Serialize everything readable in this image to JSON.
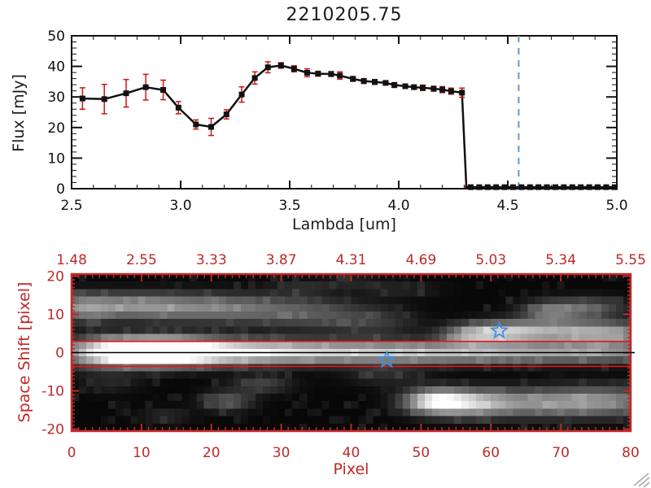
{
  "colors": {
    "black": "#111111",
    "axis_red": "#c02828",
    "error_red": "#cc1515",
    "line_red": "#e41818",
    "lambda_blue": "#5b9bd5",
    "star_blue": "#3f8fe8",
    "grip_gray": "#aaaaaa"
  },
  "chart_data": [
    {
      "type": "line",
      "title": "2210205.75",
      "xlabel": "Lambda [um]",
      "ylabel": "Flux [mJy]",
      "xlim": [
        2.5,
        5.0
      ],
      "ylim": [
        0,
        50
      ],
      "x_ticks": [
        2.5,
        3.0,
        3.5,
        4.0,
        4.5,
        5.0
      ],
      "x_tick_labels": [
        "2.5",
        "3.0",
        "3.5",
        "4.0",
        "4.5",
        "5.0"
      ],
      "x_minor_step": 0.1,
      "y_ticks": [
        0,
        10,
        20,
        30,
        40,
        50
      ],
      "y_tick_labels": [
        "0",
        "10",
        "20",
        "30",
        "40",
        "50"
      ],
      "y_minor_step": 2,
      "marker": "square",
      "series": [
        {
          "name": "spectrum",
          "x": [
            2.55,
            2.65,
            2.75,
            2.84,
            2.92,
            2.99,
            3.07,
            3.14,
            3.21,
            3.28,
            3.34,
            3.4,
            3.46,
            3.52,
            3.58,
            3.63,
            3.69,
            3.73,
            3.79,
            3.84,
            3.89,
            3.94,
            3.98,
            4.03,
            4.07,
            4.11,
            4.16,
            4.2,
            4.24,
            4.29
          ],
          "y": [
            29.5,
            29.3,
            31.2,
            33.2,
            32.3,
            26.5,
            21.0,
            20.2,
            24.3,
            30.8,
            36.2,
            39.7,
            40.3,
            39.2,
            37.9,
            37.6,
            37.5,
            37.0,
            35.9,
            35.2,
            34.9,
            34.6,
            33.9,
            33.5,
            33.2,
            33.0,
            32.7,
            32.4,
            31.9,
            31.4
          ],
          "yerr": [
            3.5,
            4.8,
            4.5,
            4.2,
            3.2,
            2.0,
            1.5,
            2.8,
            1.5,
            2.5,
            2.0,
            1.8,
            0.9,
            1.0,
            1.3,
            0.8,
            0.8,
            1.2,
            0.8,
            0.8,
            0.8,
            0.7,
            0.8,
            0.7,
            0.7,
            0.9,
            0.8,
            1.0,
            1.0,
            1.5
          ]
        }
      ],
      "zero_tail": {
        "x_start": 4.33,
        "x_end": 4.99,
        "n": 18,
        "y": 0.5,
        "drop_x": 4.31
      },
      "vline": {
        "x": 4.55,
        "style": "dashed"
      },
      "hline": {
        "y": 0.6,
        "x_start": 4.3,
        "x_end": 5.0,
        "style": "dashed"
      }
    },
    {
      "type": "heatmap",
      "xlabel": "Pixel",
      "ylabel": "Space Shift [pixel]",
      "xlim": [
        0,
        80
      ],
      "ylim": [
        -20.5,
        20.5
      ],
      "x_ticks": [
        0,
        10,
        20,
        30,
        40,
        50,
        60,
        70,
        80
      ],
      "x_tick_labels": [
        "0",
        "10",
        "20",
        "30",
        "40",
        "50",
        "60",
        "70",
        "80"
      ],
      "y_ticks": [
        -20,
        -10,
        0,
        10,
        20
      ],
      "y_tick_labels": [
        "-20",
        "-10",
        "0",
        "10",
        "20"
      ],
      "top_axis_labels": [
        "1.48",
        "2.55",
        "3.33",
        "3.87",
        "4.31",
        "4.69",
        "5.03",
        "5.34",
        "5.55"
      ],
      "extraction_lines": {
        "upper": 2.9,
        "lower": -3.6
      },
      "center_line_y": 0.0,
      "stars": [
        {
          "x": 45.1,
          "y": -1.9
        },
        {
          "x": 61.2,
          "y": 5.7
        }
      ],
      "grid": {
        "cols": 76,
        "rows": 21
      },
      "blobs": [
        {
          "x": 3,
          "y": 0,
          "sx": 4,
          "sy": 2.6,
          "a": 0.55
        },
        {
          "x": 9,
          "y": 0.3,
          "sx": 4.5,
          "sy": 2.4,
          "a": 1.0
        },
        {
          "x": 15,
          "y": 0.3,
          "sx": 5,
          "sy": 2.4,
          "a": 0.95
        },
        {
          "x": 24,
          "y": 0.2,
          "sx": 7,
          "sy": 2.2,
          "a": 0.62
        },
        {
          "x": 36,
          "y": 0.2,
          "sx": 9,
          "sy": 2.0,
          "a": 0.5
        },
        {
          "x": 50,
          "y": 0,
          "sx": 10,
          "sy": 1.9,
          "a": 0.44
        },
        {
          "x": 64,
          "y": 0,
          "sx": 10,
          "sy": 1.8,
          "a": 0.38
        },
        {
          "x": 78,
          "y": 0,
          "sx": 8,
          "sy": 1.8,
          "a": 0.34
        },
        {
          "x": 1,
          "y": 12,
          "sx": 3,
          "sy": 2.6,
          "a": 0.42
        },
        {
          "x": 8,
          "y": 12.5,
          "sx": 5,
          "sy": 2.4,
          "a": 0.4
        },
        {
          "x": 17,
          "y": 12,
          "sx": 6,
          "sy": 2.6,
          "a": 0.35
        },
        {
          "x": 27,
          "y": 11.5,
          "sx": 6,
          "sy": 2.8,
          "a": 0.27
        },
        {
          "x": 36,
          "y": 10,
          "sx": 5,
          "sy": 3,
          "a": 0.2
        },
        {
          "x": 44,
          "y": 8,
          "sx": 4,
          "sy": 3,
          "a": 0.15
        },
        {
          "x": 22,
          "y": -13,
          "sx": 2.5,
          "sy": 1.8,
          "a": 0.3
        },
        {
          "x": 27,
          "y": -8.5,
          "sx": 3,
          "sy": 1.6,
          "a": 0.22
        },
        {
          "x": 13,
          "y": -17,
          "sx": 2.5,
          "sy": 1.5,
          "a": 0.12
        },
        {
          "x": 52,
          "y": -13,
          "sx": 3,
          "sy": 2.2,
          "a": 0.75
        },
        {
          "x": 57,
          "y": -13.5,
          "sx": 4,
          "sy": 2.4,
          "a": 0.55
        },
        {
          "x": 66,
          "y": -13.5,
          "sx": 7,
          "sy": 2.6,
          "a": 0.42
        },
        {
          "x": 77,
          "y": -13,
          "sx": 6,
          "sy": 2.8,
          "a": 0.4
        },
        {
          "x": 57,
          "y": 4.5,
          "sx": 3,
          "sy": 1.8,
          "a": 0.4
        },
        {
          "x": 62,
          "y": 5.5,
          "sx": 4,
          "sy": 2.0,
          "a": 0.55
        },
        {
          "x": 70,
          "y": 5.5,
          "sx": 6,
          "sy": 2.0,
          "a": 0.45
        },
        {
          "x": 78,
          "y": 5,
          "sx": 5,
          "sy": 2.2,
          "a": 0.42
        },
        {
          "x": 69,
          "y": 11,
          "sx": 3,
          "sy": 2,
          "a": 0.4
        },
        {
          "x": 75,
          "y": 12,
          "sx": 3.5,
          "sy": 2,
          "a": 0.28
        },
        {
          "x": 45,
          "y": -6,
          "sx": 4,
          "sy": 2,
          "a": 0.13
        },
        {
          "x": 33,
          "y": 17.5,
          "sx": 3,
          "sy": 1.3,
          "a": 0.12
        },
        {
          "x": 47,
          "y": 17,
          "sx": 4,
          "sy": 1.5,
          "a": 0.1
        },
        {
          "x": 5,
          "y": -8,
          "sx": 3,
          "sy": 2,
          "a": 0.1
        },
        {
          "x": 40,
          "y": 19,
          "sx": 3,
          "sy": 1.2,
          "a": 0.1
        }
      ]
    }
  ]
}
